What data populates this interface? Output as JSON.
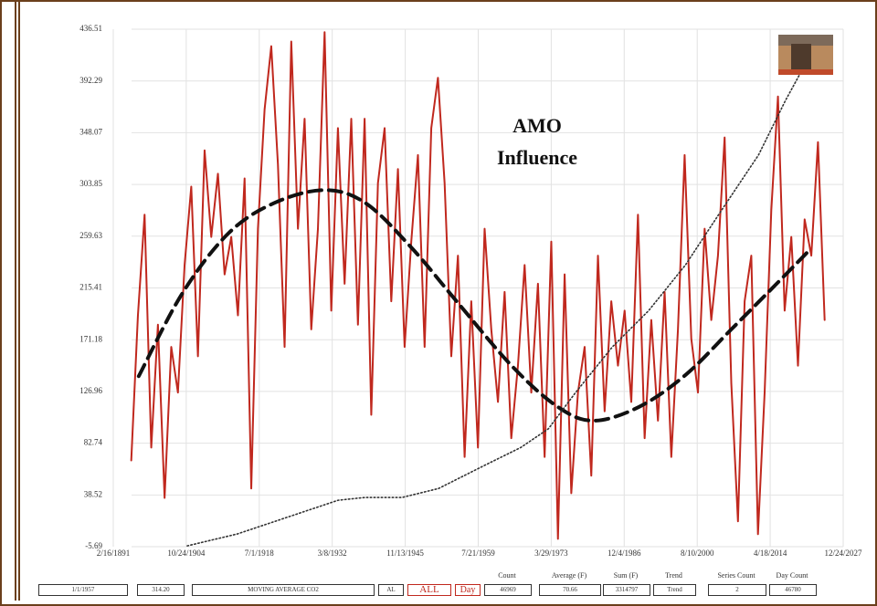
{
  "chart_data": {
    "type": "line",
    "annotation": [
      "AMO",
      "Influence"
    ],
    "xlim": [
      1891.13,
      2027.98
    ],
    "xticks": [
      {
        "value": 1891.13,
        "label": "2/16/1891"
      },
      {
        "value": 1904.81,
        "label": "10/24/1904"
      },
      {
        "value": 1918.5,
        "label": "7/1/1918"
      },
      {
        "value": 1932.18,
        "label": "3/8/1932"
      },
      {
        "value": 1945.87,
        "label": "11/13/1945"
      },
      {
        "value": 1959.55,
        "label": "7/21/1959"
      },
      {
        "value": 1973.24,
        "label": "3/29/1973"
      },
      {
        "value": 1986.92,
        "label": "12/4/1986"
      },
      {
        "value": 2000.61,
        "label": "8/10/2000"
      },
      {
        "value": 2014.29,
        "label": "4/18/2014"
      },
      {
        "value": 2027.98,
        "label": "12/24/2027"
      }
    ],
    "ylim": [
      -5.69,
      436.51
    ],
    "yticks": [
      -5.69,
      38.52,
      82.74,
      126.96,
      171.18,
      215.41,
      259.63,
      303.85,
      348.07,
      392.29,
      436.51
    ],
    "grid": true,
    "series": [
      {
        "color": "#c0281e",
        "style": "solid",
        "x": [
          1894.5,
          1895.75,
          1897,
          1898.25,
          1899.5,
          1900.75,
          1902,
          1903.25,
          1904.5,
          1905.75,
          1907,
          1908.25,
          1909.5,
          1910.75,
          1912,
          1913.25,
          1914.5,
          1915.75,
          1917,
          1918.25,
          1919.5,
          1920.75,
          1922,
          1923.25,
          1924.5,
          1925.75,
          1927,
          1928.25,
          1929.5,
          1930.75,
          1932,
          1933.25,
          1934.5,
          1935.75,
          1937,
          1938.25,
          1939.5,
          1940.75,
          1942,
          1943.25,
          1944.5,
          1945.75,
          1947,
          1948.25,
          1949.5,
          1950.75,
          1952,
          1953.25,
          1954.5,
          1955.75,
          1957,
          1958.25,
          1959.5,
          1960.75,
          1962,
          1963.25,
          1964.5,
          1965.75,
          1967,
          1968.25,
          1969.5,
          1970.75,
          1972,
          1973.25,
          1974.5,
          1975.75,
          1977,
          1978.25,
          1979.5,
          1980.75,
          1982,
          1983.25,
          1984.5,
          1985.75,
          1987,
          1988.25,
          1989.5,
          1990.75,
          1992,
          1993.25,
          1994.5,
          1995.75,
          1997,
          1998.25,
          1999.5,
          2000.75,
          2002,
          2003.25,
          2004.5,
          2005.75,
          2007,
          2008.25,
          2009.5,
          2010.75,
          2012,
          2013.25,
          2014.5,
          2015.75,
          2017,
          2018.25,
          2019.5,
          2020.75,
          2022,
          2023.25,
          2024.5
        ],
        "values": [
          68,
          192,
          278,
          79,
          184,
          36,
          165,
          126,
          235,
          302,
          157,
          333,
          259,
          313,
          227,
          259,
          192,
          309,
          44,
          266,
          368,
          422,
          321,
          165,
          426,
          266,
          360,
          180,
          266,
          434,
          196,
          352,
          219,
          360,
          184,
          360,
          107,
          305,
          352,
          204,
          317,
          165,
          255,
          329,
          165,
          352,
          395,
          305,
          157,
          243,
          71,
          204,
          79,
          266,
          180,
          118,
          212,
          87,
          149,
          235,
          126,
          219,
          71,
          255,
          1,
          227,
          40,
          126,
          165,
          55,
          243,
          110,
          204,
          149,
          196,
          118,
          278,
          87,
          188,
          102,
          212,
          71,
          180,
          329,
          172,
          126,
          266,
          188,
          243,
          344,
          134,
          16,
          204,
          243,
          5,
          126,
          282,
          379,
          196,
          259,
          149,
          274,
          243,
          340,
          188
        ]
      },
      {
        "color": "#111111",
        "style": "dashed",
        "x": [
          1895.9,
          1904.1,
          1912.7,
          1921.3,
          1930.7,
          1938.4,
          1947.0,
          1955.5,
          1965.8,
          1974.4,
          1981.2,
          1989.8,
          1998.4,
          2007.0,
          2015.5,
          2021.5
        ],
        "values": [
          140,
          211,
          262,
          288,
          299,
          288,
          250,
          204,
          149,
          114,
          102,
          114,
          141,
          180,
          219,
          247
        ]
      },
      {
        "color": "#333333",
        "style": "dotted",
        "x": [
          1905.0,
          1914.4,
          1924.7,
          1933.3,
          1938.4,
          1945.3,
          1952.1,
          1960.7,
          1967.5,
          1972.7,
          1977.8,
          1984.7,
          1991.5,
          1998.4,
          2005.2,
          2012.1,
          2017.2,
          2023.2
        ],
        "values": [
          -5,
          5.2,
          20.9,
          34,
          36.4,
          36.4,
          44,
          63.7,
          79,
          95,
          126,
          165,
          196,
          235,
          282,
          329,
          376,
          426
        ]
      }
    ]
  },
  "status_bar": {
    "fields": [
      "1/1/1957",
      "314.20",
      "MOVING AVERAGE CO2",
      "AL"
    ],
    "buttons": [
      "ALL",
      "Day"
    ],
    "stats": [
      {
        "label": "Count",
        "value": "46969"
      },
      {
        "label": "Average (F)",
        "value": "70.66"
      },
      {
        "label": "Sum (F)",
        "value": "3314797"
      },
      {
        "label": "Trend",
        "value": "Trend"
      },
      {
        "label": "Series Count",
        "value": "2"
      },
      {
        "label": "Day Count",
        "value": "46780"
      }
    ]
  }
}
